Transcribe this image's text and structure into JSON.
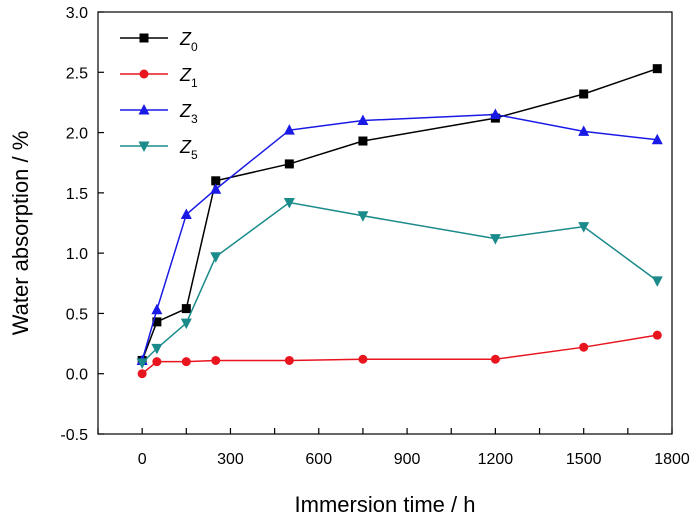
{
  "chart_data": {
    "type": "line",
    "xlabel": "Immersion time / h",
    "ylabel": "Water absorption / %",
    "xlim": [
      -150,
      1800
    ],
    "ylim": [
      -0.5,
      3.0
    ],
    "xticks": [
      0,
      300,
      600,
      900,
      1200,
      1500,
      1800
    ],
    "yticks": [
      -0.5,
      0.0,
      0.5,
      1.0,
      1.5,
      2.0,
      2.5,
      3.0
    ],
    "legend_position": "top-left",
    "grid": false,
    "series": [
      {
        "name": "Z",
        "subscript": "0",
        "color": "#000000",
        "marker": "square",
        "x": [
          0,
          50,
          150,
          250,
          500,
          750,
          1200,
          1500,
          1750
        ],
        "y": [
          0.11,
          0.43,
          0.54,
          1.6,
          1.74,
          1.93,
          2.12,
          2.32,
          2.53
        ]
      },
      {
        "name": "Z",
        "subscript": "1",
        "color": "#e8141e",
        "marker": "circle",
        "x": [
          0,
          50,
          150,
          250,
          500,
          750,
          1200,
          1500,
          1750
        ],
        "y": [
          0.0,
          0.1,
          0.1,
          0.11,
          0.11,
          0.12,
          0.12,
          0.22,
          0.32
        ]
      },
      {
        "name": "Z",
        "subscript": "3",
        "color": "#1a1ae6",
        "marker": "triangle-up",
        "x": [
          0,
          50,
          150,
          250,
          500,
          750,
          1200,
          1500,
          1750
        ],
        "y": [
          0.11,
          0.53,
          1.32,
          1.53,
          2.02,
          2.1,
          2.15,
          2.01,
          1.94
        ]
      },
      {
        "name": "Z",
        "subscript": "5",
        "color": "#1a8a8a",
        "marker": "triangle-down",
        "x": [
          0,
          50,
          150,
          250,
          500,
          750,
          1200,
          1500,
          1750
        ],
        "y": [
          0.09,
          0.21,
          0.42,
          0.97,
          1.42,
          1.31,
          1.12,
          1.22,
          0.77
        ]
      }
    ]
  }
}
